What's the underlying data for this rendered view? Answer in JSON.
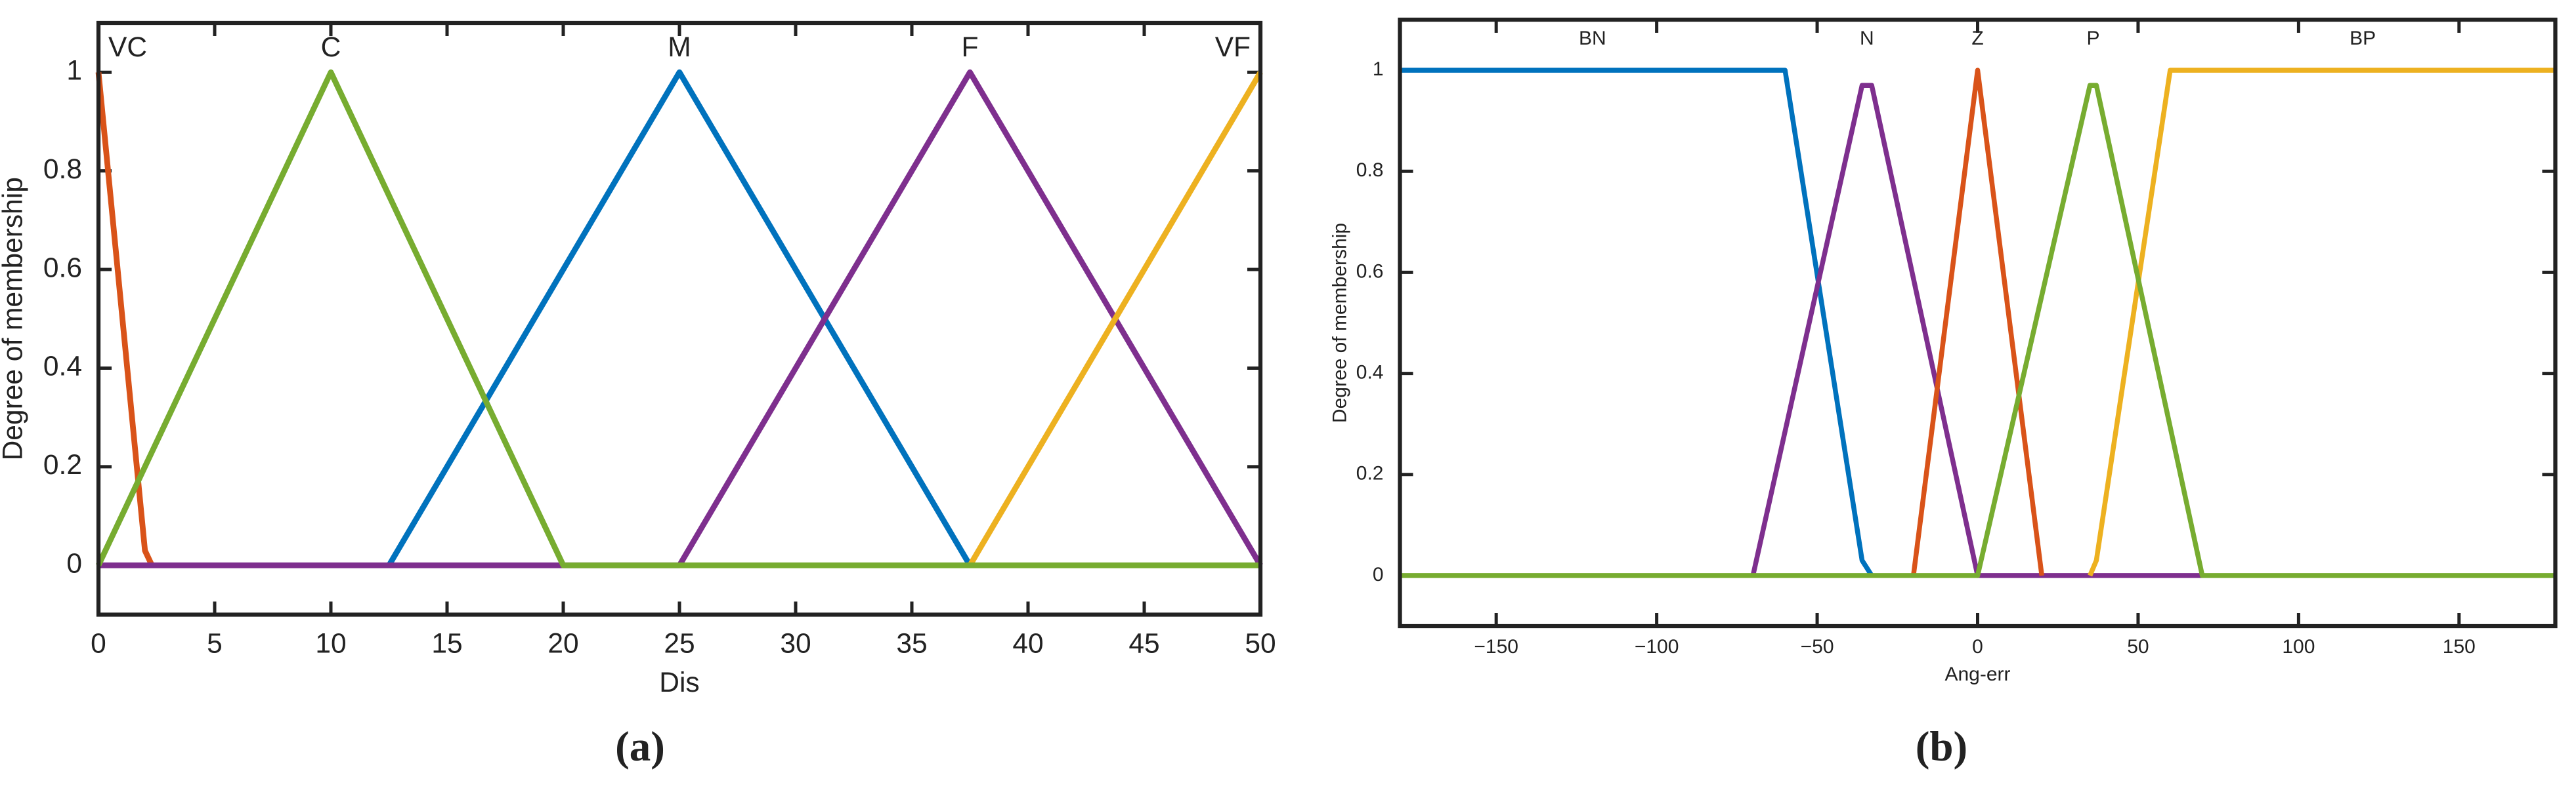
{
  "chart_data": [
    {
      "type": "line",
      "caption": "(a)",
      "xlabel": "Dis",
      "ylabel": "Degree of membership",
      "xlim": [
        0,
        50
      ],
      "ylim": [
        -0.1,
        1.1
      ],
      "xticks": [
        0,
        5,
        10,
        15,
        20,
        25,
        30,
        35,
        40,
        45,
        50
      ],
      "yticks": [
        0,
        0.2,
        0.4,
        0.6,
        0.8,
        1
      ],
      "grid": false,
      "series": [
        {
          "name": "VC",
          "color": "#d95319",
          "x": [
            0,
            2,
            2.3
          ],
          "values": [
            1,
            0.03,
            0
          ]
        },
        {
          "name": "M",
          "color": "#0072bd",
          "x": [
            12.5,
            25,
            37.5
          ],
          "values": [
            0,
            1,
            0
          ]
        },
        {
          "name": "F",
          "color": "#7e2f8e",
          "x": [
            0,
            25,
            37.5,
            50
          ],
          "values": [
            0,
            0,
            1,
            0
          ]
        },
        {
          "name": "VF",
          "color": "#edb120",
          "x": [
            37.5,
            50
          ],
          "values": [
            0,
            1
          ]
        },
        {
          "name": "C",
          "color": "#77ac30",
          "x": [
            0,
            10,
            20,
            50
          ],
          "values": [
            0,
            1,
            0,
            0
          ]
        }
      ]
    },
    {
      "type": "line",
      "caption": "(b)",
      "xlabel": "Ang-err",
      "ylabel": "Degree of membership",
      "xlim": [
        -180,
        180
      ],
      "ylim": [
        -0.1,
        1.1
      ],
      "xticks": [
        {
          "value": -150,
          "label": "−150"
        },
        {
          "value": -100,
          "label": "−100"
        },
        {
          "value": -50,
          "label": "−50"
        },
        0,
        50,
        100,
        150
      ],
      "yticks": [
        0,
        0.2,
        0.4,
        0.6,
        0.8,
        1
      ],
      "grid": false,
      "series": [
        {
          "name": "BN",
          "color": "#0072bd",
          "x": [
            -180,
            -60,
            -36,
            -33
          ],
          "values": [
            1,
            1,
            0.03,
            0
          ]
        },
        {
          "name": "N",
          "color": "#7e2f8e",
          "x": [
            -70,
            -36,
            -33,
            0,
            70
          ],
          "values": [
            0,
            0.97,
            0.97,
            0,
            0
          ]
        },
        {
          "name": "Z",
          "color": "#d95319",
          "x": [
            -20,
            0,
            20
          ],
          "values": [
            0,
            1,
            0
          ]
        },
        {
          "name": "BP",
          "color": "#edb120",
          "x": [
            35,
            37,
            60,
            180
          ],
          "values": [
            0,
            0.03,
            1,
            1
          ]
        },
        {
          "name": "P",
          "color": "#77ac30",
          "x": [
            -180,
            0,
            35,
            37,
            70,
            180
          ],
          "values": [
            0,
            0,
            0.97,
            0.97,
            0,
            0
          ]
        }
      ]
    }
  ]
}
